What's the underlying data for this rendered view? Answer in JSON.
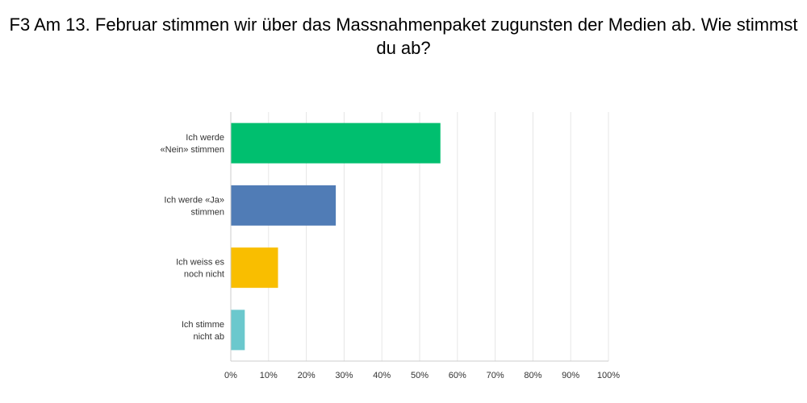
{
  "chart_data": {
    "type": "bar",
    "orientation": "horizontal",
    "title": "F3 Am 13. Februar stimmen wir über das Massnahmenpaket zugunsten der Medien ab. Wie stimmst du ab?",
    "categories": [
      [
        "Ich werde",
        "«Nein» stimmen"
      ],
      [
        "Ich werde «Ja»",
        "stimmen"
      ],
      [
        "Ich weiss es",
        "noch nicht"
      ],
      [
        "Ich stimme",
        "nicht ab"
      ]
    ],
    "values": [
      55.5,
      27.8,
      12.5,
      3.7
    ],
    "colors": [
      "#00BF6F",
      "#507CB6",
      "#F9BE00",
      "#6BC8CD"
    ],
    "xlim": [
      0,
      100
    ],
    "xticks": [
      "0%",
      "10%",
      "20%",
      "30%",
      "40%",
      "50%",
      "60%",
      "70%",
      "80%",
      "90%",
      "100%"
    ],
    "xlabel": "",
    "ylabel": "",
    "grid": true,
    "grid_color": "#e6e6e6",
    "axis_color": "#cccccc"
  }
}
